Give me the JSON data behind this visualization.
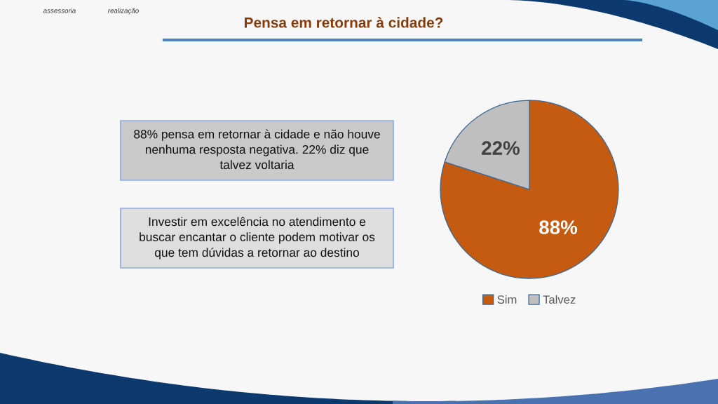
{
  "chart_data": {
    "type": "pie",
    "title": "Pensa em retornar à cidade?",
    "categories": [
      "Sim",
      "Talvez"
    ],
    "values": [
      88,
      22
    ],
    "colors": [
      "#c55a11",
      "#bfbfbf"
    ],
    "value_labels": [
      "88%",
      "22%"
    ],
    "legend": "bottom",
    "annotations": [
      "assessoria",
      "realização",
      "88% pensa em retornar à cidade e não houve nenhuma resposta negativa. 22% diz que talvez voltaria",
      "Investir em excelência no atendimento e buscar encantar o cliente podem motivar os que tem dúvidas a retornar ao destino"
    ]
  }
}
